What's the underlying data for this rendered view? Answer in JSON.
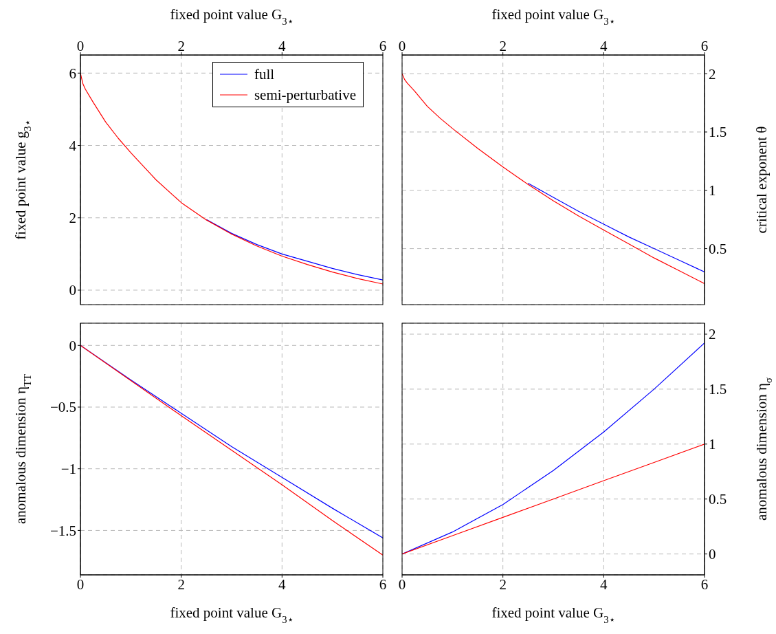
{
  "chart_data": [
    {
      "type": "line",
      "xlabel": "fixed point value G$_{3⋆}$",
      "ylabel": "fixed point value g$_{3⋆}$",
      "xlim": [
        0,
        6
      ],
      "xticks": [
        0,
        2,
        4,
        6
      ],
      "ylim": [
        -0.4,
        6.5
      ],
      "yticks": [
        0,
        2,
        4,
        6
      ],
      "grid": true,
      "legend": "top right",
      "series": [
        {
          "name": "full",
          "color": "#0000ff",
          "x": [
            2.5,
            3,
            3.5,
            4,
            4.5,
            5,
            5.5,
            6
          ],
          "values": [
            1.95,
            1.57,
            1.26,
            1.0,
            0.8,
            0.6,
            0.43,
            0.28
          ]
        },
        {
          "name": "semi-perturbative",
          "color": "#ff0000",
          "x": [
            0,
            0.05,
            0.1,
            0.25,
            0.5,
            0.75,
            1,
            1.5,
            2,
            2.5,
            3,
            3.5,
            4,
            4.5,
            5,
            5.5,
            6
          ],
          "values": [
            6,
            5.7,
            5.55,
            5.2,
            4.65,
            4.2,
            3.8,
            3.05,
            2.42,
            1.94,
            1.55,
            1.22,
            0.94,
            0.71,
            0.5,
            0.32,
            0.17
          ]
        }
      ]
    },
    {
      "type": "line",
      "xlabel": "fixed point value G$_{3⋆}$",
      "ylabel": "critical exponent θ",
      "xlim": [
        0,
        6
      ],
      "xticks": [
        0,
        2,
        4,
        6
      ],
      "ylim": [
        0.02,
        2.16
      ],
      "yticks": [
        0.5,
        1,
        1.5,
        2
      ],
      "grid": true,
      "series": [
        {
          "color": "#0000ff",
          "x": [
            2.5,
            3,
            3.5,
            4,
            4.5,
            5,
            5.5,
            6
          ],
          "values": [
            1.06,
            0.94,
            0.82,
            0.71,
            0.6,
            0.5,
            0.4,
            0.3
          ]
        },
        {
          "color": "#ff0000",
          "x": [
            0,
            0.05,
            0.1,
            0.25,
            0.5,
            0.75,
            1,
            1.5,
            2,
            2.5,
            3,
            3.5,
            4,
            4.5,
            5,
            5.5,
            6
          ],
          "values": [
            2,
            1.95,
            1.92,
            1.85,
            1.72,
            1.62,
            1.53,
            1.36,
            1.2,
            1.05,
            0.91,
            0.78,
            0.66,
            0.54,
            0.42,
            0.31,
            0.2
          ]
        }
      ]
    },
    {
      "type": "line",
      "xlabel": "fixed point value G$_{3⋆}$",
      "ylabel": "anomalous dimension η$_{TT}$",
      "xlim": [
        0,
        6
      ],
      "xticks": [
        0,
        2,
        4,
        6
      ],
      "ylim": [
        -1.86,
        0.18
      ],
      "yticks": [
        0,
        {
          "value": -0.5,
          "label": "−0.5"
        },
        {
          "value": -1,
          "label": "−1"
        },
        {
          "value": -1.5,
          "label": "−1.5"
        }
      ],
      "grid": true,
      "series": [
        {
          "color": "#0000ff",
          "x": [
            0,
            1,
            2,
            3,
            4,
            5,
            6
          ],
          "values": [
            0,
            -0.28,
            -0.55,
            -0.82,
            -1.07,
            -1.32,
            -1.56
          ]
        },
        {
          "color": "#ff0000",
          "x": [
            0,
            1,
            2,
            3,
            4,
            5,
            6
          ],
          "values": [
            0,
            -0.285,
            -0.57,
            -0.85,
            -1.13,
            -1.42,
            -1.7
          ]
        }
      ]
    },
    {
      "type": "line",
      "xlabel": "fixed point value G$_{3⋆}$",
      "ylabel": "anomalous dimension η$_{σ}$",
      "xlim": [
        0,
        6
      ],
      "xticks": [
        0,
        2,
        4,
        6
      ],
      "ylim": [
        -0.19,
        2.1
      ],
      "yticks": [
        0,
        0.5,
        1,
        1.5,
        2
      ],
      "grid": true,
      "series": [
        {
          "color": "#0000ff",
          "x": [
            0,
            1,
            2,
            3,
            4,
            5,
            6
          ],
          "values": [
            0,
            0.2,
            0.45,
            0.76,
            1.11,
            1.5,
            1.92
          ]
        },
        {
          "color": "#ff0000",
          "x": [
            0,
            1,
            2,
            3,
            4,
            5,
            6
          ],
          "values": [
            0,
            0.167,
            0.333,
            0.5,
            0.667,
            0.833,
            1
          ]
        }
      ]
    }
  ]
}
